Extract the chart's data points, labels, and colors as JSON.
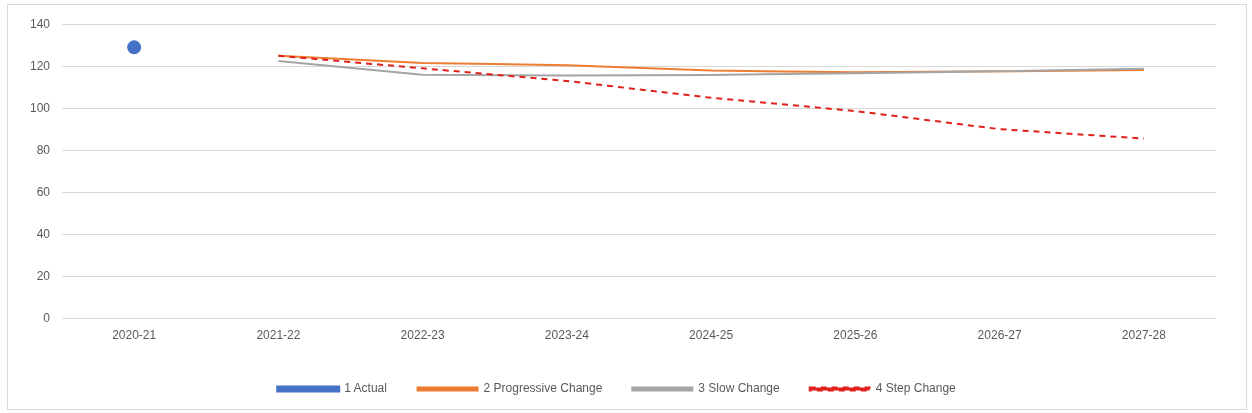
{
  "chart_data": {
    "type": "line",
    "categories": [
      "2020-21",
      "2021-22",
      "2022-23",
      "2023-24",
      "2024-25",
      "2025-26",
      "2026-27",
      "2027-28"
    ],
    "series": [
      {
        "name": "1 Actual",
        "color": "#4472c4",
        "marker": "circle",
        "line_style": "solid",
        "values": [
          129,
          null,
          null,
          null,
          null,
          null,
          null,
          null
        ]
      },
      {
        "name": "2 Progressive Change",
        "color": "#ed7d31",
        "marker": "none",
        "line_style": "solid",
        "values": [
          null,
          125,
          121.6,
          120.5,
          118,
          117.1,
          117.6,
          118.2
        ]
      },
      {
        "name": "3 Slow Change",
        "color": "#a5a5a5",
        "marker": "none",
        "line_style": "solid",
        "values": [
          null,
          122.5,
          116,
          115.6,
          115.9,
          116.7,
          117.6,
          118.8
        ]
      },
      {
        "name": "4 Step Change",
        "color": "#e0201b",
        "marker": "none",
        "line_style": "dashed",
        "values": [
          null,
          125,
          119,
          113,
          105,
          98.7,
          90.1,
          85.6
        ]
      }
    ],
    "ylim": [
      0,
      140
    ],
    "yticks": [
      0,
      20,
      40,
      60,
      80,
      100,
      120,
      140
    ],
    "grid": "y",
    "legend": "bottom"
  }
}
